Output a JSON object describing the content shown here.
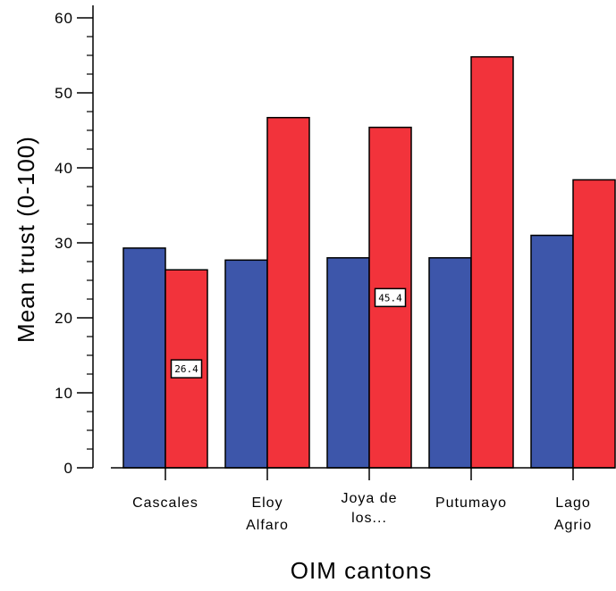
{
  "chart_data": {
    "type": "bar",
    "title": "",
    "xlabel": "OIM cantons",
    "ylabel": "Mean trust (0-100)",
    "ylim": [
      0,
      60
    ],
    "yticks": [
      0,
      10,
      20,
      30,
      40,
      50,
      60
    ],
    "categories": [
      [
        "Cascales"
      ],
      [
        "Eloy",
        "Alfaro"
      ],
      [
        "Joya de",
        "los..."
      ],
      [
        "Putumayo"
      ],
      [
        "Lago",
        "Agrio"
      ]
    ],
    "series": [
      {
        "color": "#3d56aa",
        "values": [
          29.3,
          27.7,
          28.0,
          28.0,
          31.0
        ]
      },
      {
        "color": "#f2333b",
        "values": [
          26.4,
          46.7,
          45.4,
          54.8,
          38.4
        ]
      }
    ],
    "data_labels": [
      {
        "series": 1,
        "category": 0,
        "text": "26.4"
      },
      {
        "series": 1,
        "category": 2,
        "text": "45.4"
      }
    ],
    "grid": false,
    "legend": "none"
  }
}
